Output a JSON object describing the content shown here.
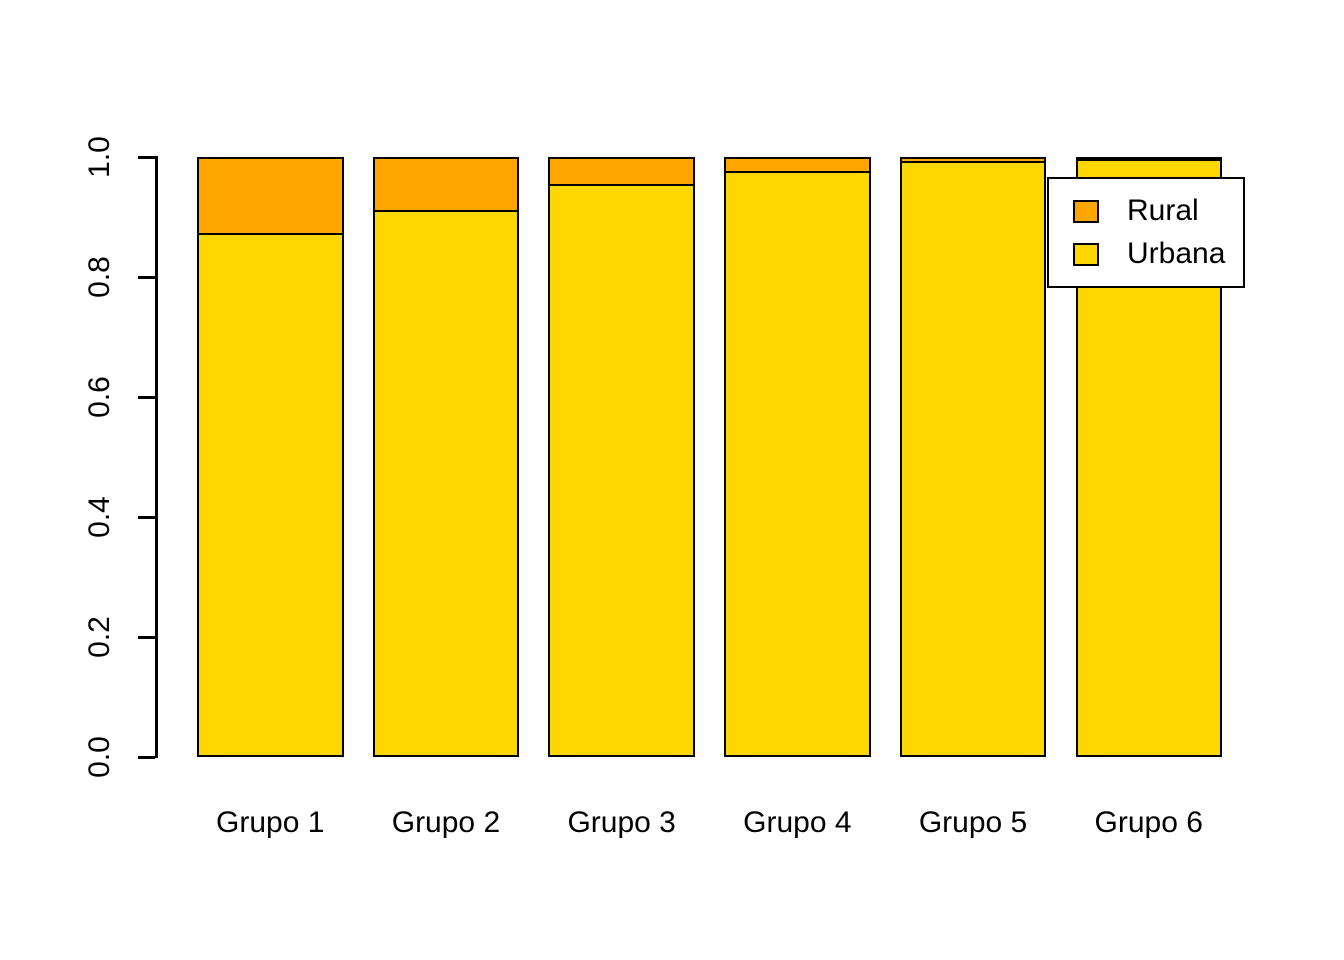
{
  "figure": {
    "background_color": "#ffffff",
    "text_color": "#000000"
  },
  "chart_data": {
    "type": "bar",
    "stacked": true,
    "orientation": "vertical",
    "title": "",
    "xlabel": "",
    "ylabel": "",
    "categories": [
      "Grupo 1",
      "Grupo 2",
      "Grupo 3",
      "Grupo 4",
      "Grupo 5",
      "Grupo 6"
    ],
    "series": [
      {
        "name": "Urbana",
        "color": "#FFD700",
        "values": [
          0.875,
          0.913,
          0.956,
          0.978,
          0.994,
          0.997
        ]
      },
      {
        "name": "Rural",
        "color": "#FFA500",
        "values": [
          0.125,
          0.087,
          0.044,
          0.022,
          0.006,
          0.003
        ]
      }
    ],
    "ylim": [
      0,
      1
    ],
    "yticks": [
      "0.0",
      "0.2",
      "0.4",
      "0.6",
      "0.8",
      "1.0"
    ],
    "ytick_values": [
      0.0,
      0.2,
      0.4,
      0.6,
      0.8,
      1.0
    ],
    "grid": false,
    "bar_border_color": "#000000",
    "legend": {
      "position": "top-right",
      "background": "#ffffff",
      "border_color": "#000000",
      "items": [
        {
          "label": "Rural",
          "color": "#FFA500"
        },
        {
          "label": "Urbana",
          "color": "#FFD700"
        }
      ]
    }
  }
}
